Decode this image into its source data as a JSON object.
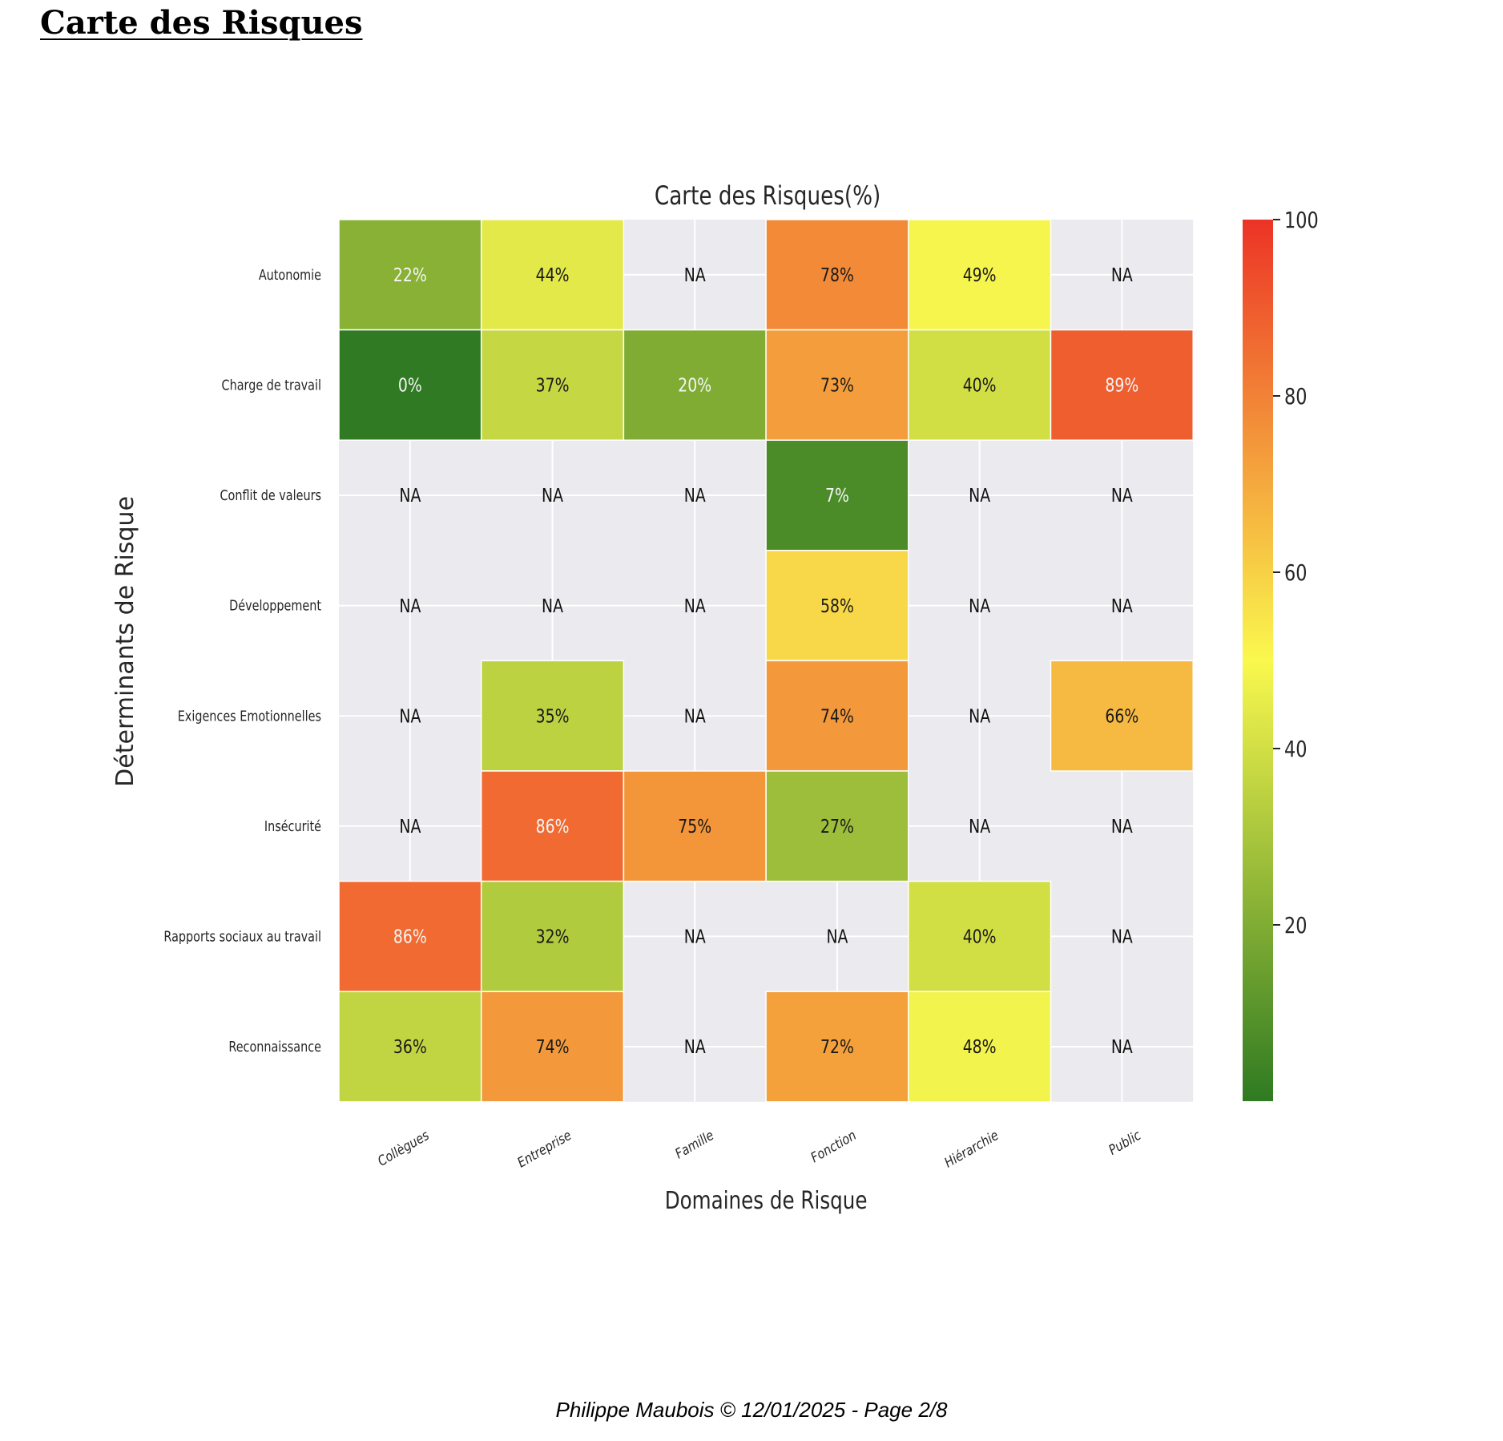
{
  "page": {
    "title": "Carte des Risques",
    "footer": "Philippe Maubois © 12/01/2025 - Page 2/8"
  },
  "chart_data": {
    "type": "heatmap",
    "title": "Carte des Risques(%)",
    "xlabel": "Domaines de Risque",
    "ylabel": "Déterminants de Risque",
    "columns": [
      "Collègues",
      "Entreprise",
      "Famille",
      "Fonction",
      "Hiérarchie",
      "Public"
    ],
    "rows": [
      "Autonomie",
      "Charge de travail",
      "Conflit de valeurs",
      "Développement",
      "Exigences Emotionnelles",
      "Insécurité",
      "Rapports sociaux au travail",
      "Reconnaissance"
    ],
    "values": [
      [
        22,
        44,
        null,
        78,
        49,
        null
      ],
      [
        0,
        37,
        20,
        73,
        40,
        89
      ],
      [
        null,
        null,
        null,
        7,
        null,
        null
      ],
      [
        null,
        null,
        null,
        58,
        null,
        null
      ],
      [
        null,
        35,
        null,
        74,
        null,
        66
      ],
      [
        null,
        86,
        75,
        27,
        null,
        null
      ],
      [
        86,
        32,
        null,
        null,
        40,
        null
      ],
      [
        36,
        74,
        null,
        72,
        48,
        null
      ]
    ],
    "missing_label": "NA",
    "value_suffix": "%",
    "colorbar": {
      "range": [
        0,
        100
      ],
      "ticks": [
        20,
        40,
        60,
        80,
        100
      ],
      "colors": [
        "#2f7a22",
        "#faf84e",
        "#ec3326"
      ]
    },
    "missing_color": "#ebebef",
    "grid": true
  }
}
